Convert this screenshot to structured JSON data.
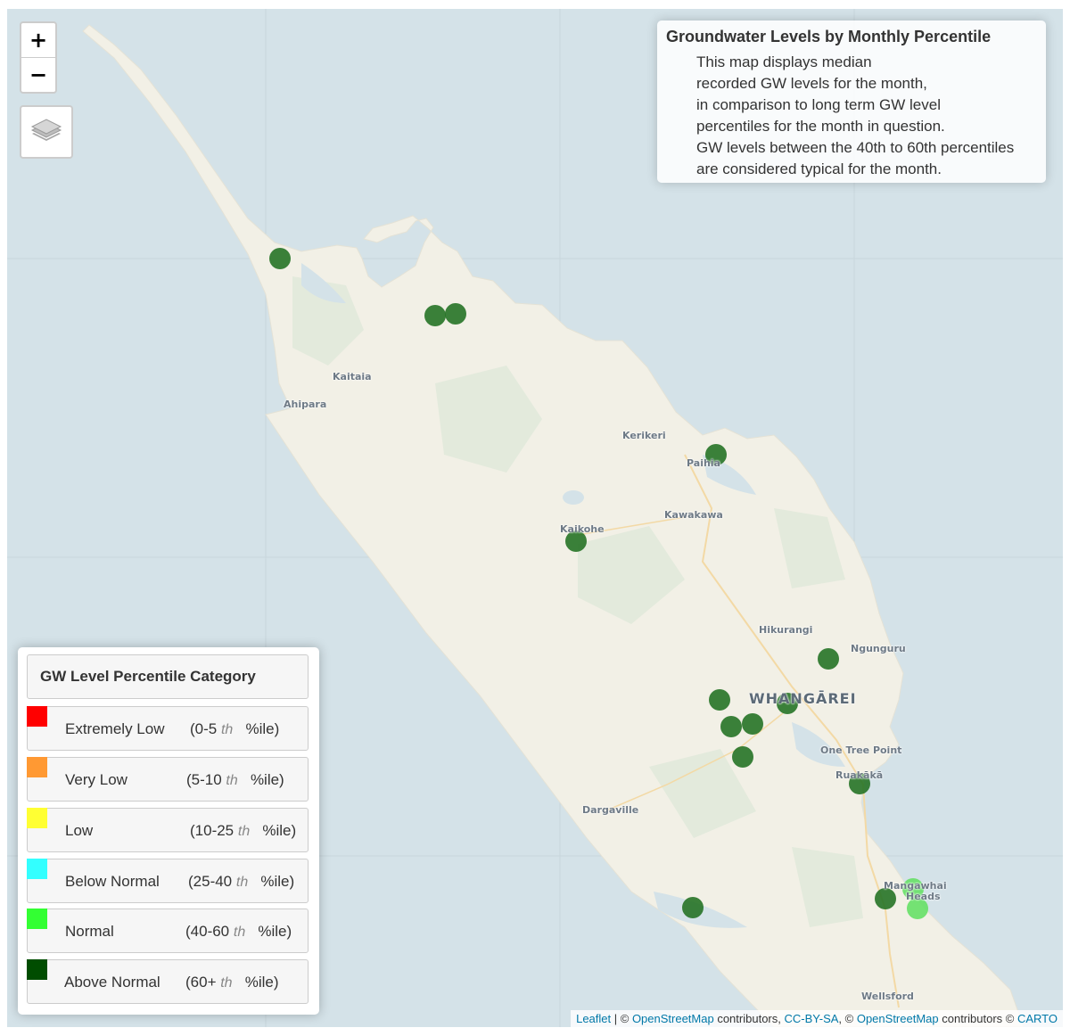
{
  "info": {
    "title": "Groundwater Levels by Monthly Percentile",
    "lines": [
      "This map displays median",
      "recorded GW levels for the month,",
      "in comparison to long term GW level",
      "percentiles for the month in question.",
      "GW levels between the 40th to 60th percentiles",
      "are considered typical for the month."
    ]
  },
  "zoom": {
    "in_label": "+",
    "out_label": "−"
  },
  "layers_icon": "layers-icon",
  "places": [
    "Kaitaia",
    "Ahipara",
    "Kerikeri",
    "Paihia",
    "Kawakawa",
    "Kaikohe",
    "Hikurangi",
    "Ngunguru",
    "WHANGĀREI",
    "One Tree Point",
    "Ruakākā",
    "Dargaville",
    "Mangawhai",
    "Heads",
    "Wellsford"
  ],
  "legend": {
    "title": "GW Level Percentile Category",
    "items": [
      {
        "name": "Extremely Low",
        "range_start": "(0-5",
        "th": "th",
        "range_end": "%ile)",
        "color": "#ff0000"
      },
      {
        "name": "Very Low",
        "range_start": "(5-10",
        "th": "th",
        "range_end": "%ile)",
        "color": "#ff9933"
      },
      {
        "name": "Low",
        "range_start": "(10-25",
        "th": "th",
        "range_end": "%ile)",
        "color": "#ffff33"
      },
      {
        "name": "Below Normal",
        "range_start": "(25-40",
        "th": "th",
        "range_end": "%ile)",
        "color": "#33ffff"
      },
      {
        "name": "Normal",
        "range_start": "(40-60",
        "th": "th",
        "range_end": "%ile)",
        "color": "#33ff33"
      },
      {
        "name": "Above Normal",
        "range_start": "(60+",
        "th": "th",
        "range_end": "%ile)",
        "color": "#004d00"
      }
    ]
  },
  "markers": [
    {
      "category": "Above Normal",
      "color": "#267326"
    },
    {
      "category": "Above Normal",
      "color": "#267326"
    },
    {
      "category": "Above Normal",
      "color": "#267326"
    },
    {
      "category": "Above Normal",
      "color": "#267326"
    },
    {
      "category": "Above Normal",
      "color": "#267326"
    },
    {
      "category": "Above Normal",
      "color": "#267326"
    },
    {
      "category": "Above Normal",
      "color": "#267326"
    },
    {
      "category": "Above Normal",
      "color": "#267326"
    },
    {
      "category": "Above Normal",
      "color": "#267326"
    },
    {
      "category": "Above Normal",
      "color": "#267326"
    },
    {
      "category": "Above Normal",
      "color": "#267326"
    },
    {
      "category": "Above Normal",
      "color": "#267326"
    },
    {
      "category": "Above Normal",
      "color": "#267326"
    },
    {
      "category": "Above Normal",
      "color": "#267326"
    },
    {
      "category": "Normal",
      "color": "#66e066"
    },
    {
      "category": "Normal",
      "color": "#66e066"
    }
  ],
  "attribution": {
    "leaflet": "Leaflet",
    "sep1": " | © ",
    "osm1": "OpenStreetMap",
    "mid1": " contributors, ",
    "ccbysa": "CC-BY-SA",
    "mid2": ", © ",
    "osm2": "OpenStreetMap",
    "mid3": " contributors © ",
    "carto": "CARTO"
  }
}
